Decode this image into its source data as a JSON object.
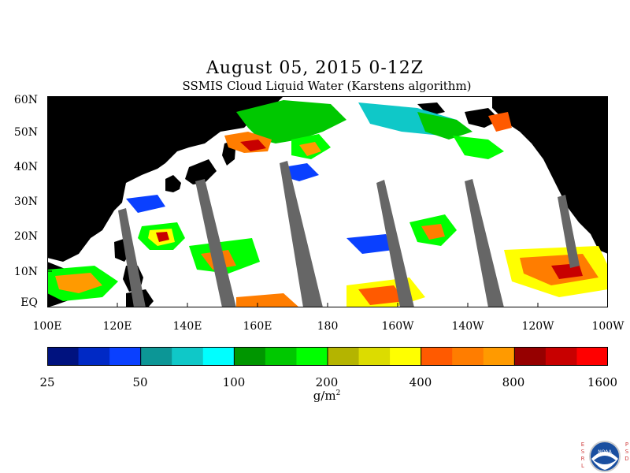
{
  "title": "August 05, 2015 0-12Z",
  "subtitle": "SSMIS Cloud Liquid Water (Karstens algorithm)",
  "lat_labels": [
    "60N",
    "50N",
    "40N",
    "30N",
    "20N",
    "10N",
    "EQ"
  ],
  "lon_labels": [
    "100E",
    "120E",
    "140E",
    "160E",
    "180",
    "160W",
    "140W",
    "120W",
    "100W"
  ],
  "colorbar": {
    "colors": [
      "#00127f",
      "#0029c5",
      "#0a40ff",
      "#0c9696",
      "#0fc8c8",
      "#00ffff",
      "#009600",
      "#00c800",
      "#00ff00",
      "#b4b400",
      "#dcdc00",
      "#ffff00",
      "#ff5a00",
      "#ff7d00",
      "#ff9a00",
      "#960000",
      "#c80000",
      "#ff0000"
    ],
    "tick_labels": [
      "25",
      "50",
      "100",
      "200",
      "400",
      "800",
      "1600"
    ]
  },
  "units": "g/m",
  "units_exp": "2",
  "logo": {
    "left_letters": "ESRL",
    "right_letters": "PSD",
    "badge_text": "NOAA"
  }
}
